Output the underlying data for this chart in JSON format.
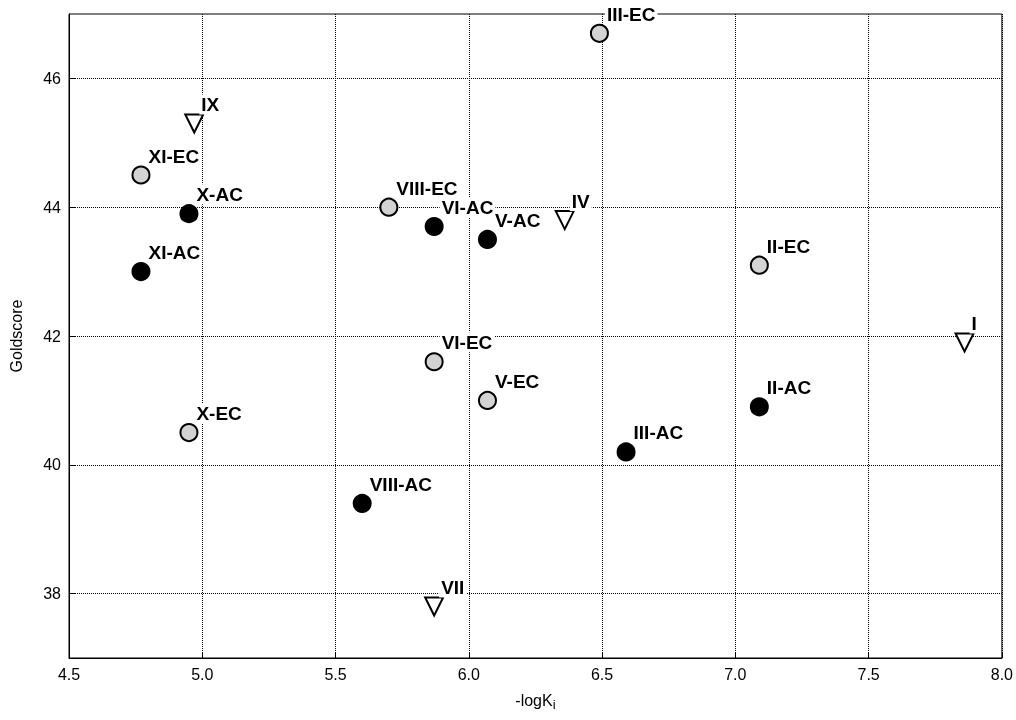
{
  "chart_data": {
    "type": "scatter",
    "xlabel": "-logK$_{i}$",
    "ylabel": "Goldscore",
    "xlim": [
      4.5,
      8.0
    ],
    "ylim": [
      37,
      47
    ],
    "xticks": [
      {
        "value": 4.5,
        "label": "4.5"
      },
      {
        "value": 5,
        "label": "5.0"
      },
      {
        "value": 5.5,
        "label": "5.5"
      },
      {
        "value": 6,
        "label": "6.0"
      },
      {
        "value": 6.5,
        "label": "6.5"
      },
      {
        "value": 7,
        "label": "7.0"
      },
      {
        "value": 7.5,
        "label": "7.5"
      },
      {
        "value": 8,
        "label": "8.0"
      }
    ],
    "yticks": [
      38,
      40,
      42,
      44,
      46
    ],
    "grid": true,
    "series": [
      {
        "color": "#000000",
        "marker": "circle",
        "x": [
          4.77,
          4.95,
          5.87,
          6.07,
          7.09,
          6.59,
          5.6
        ],
        "values": [
          43.0,
          43.9,
          43.7,
          43.5,
          40.9,
          40.2,
          39.4
        ],
        "value_labels": [
          "XI-AC",
          "X-AC",
          "VI-AC",
          "V-AC",
          "II-AC",
          "III-AC",
          "VIII-AC"
        ]
      },
      {
        "color": "#d3d3d3",
        "marker": "circle",
        "x": [
          6.49,
          4.77,
          5.7,
          7.09,
          5.87,
          6.07,
          4.95
        ],
        "values": [
          46.7,
          44.5,
          44.0,
          43.1,
          41.6,
          41.0,
          40.5
        ],
        "value_labels": [
          "III-EC",
          "XI-EC",
          "VIII-EC",
          "II-EC",
          "VI-EC",
          "V-EC",
          "X-EC"
        ]
      },
      {
        "color": "#ffffff",
        "marker": "triangle",
        "x": [
          4.97,
          6.36,
          7.86,
          5.87
        ],
        "values": [
          45.3,
          43.8,
          41.9,
          37.8
        ],
        "value_labels": [
          "IX",
          "IV",
          "I",
          "VII"
        ]
      }
    ]
  }
}
